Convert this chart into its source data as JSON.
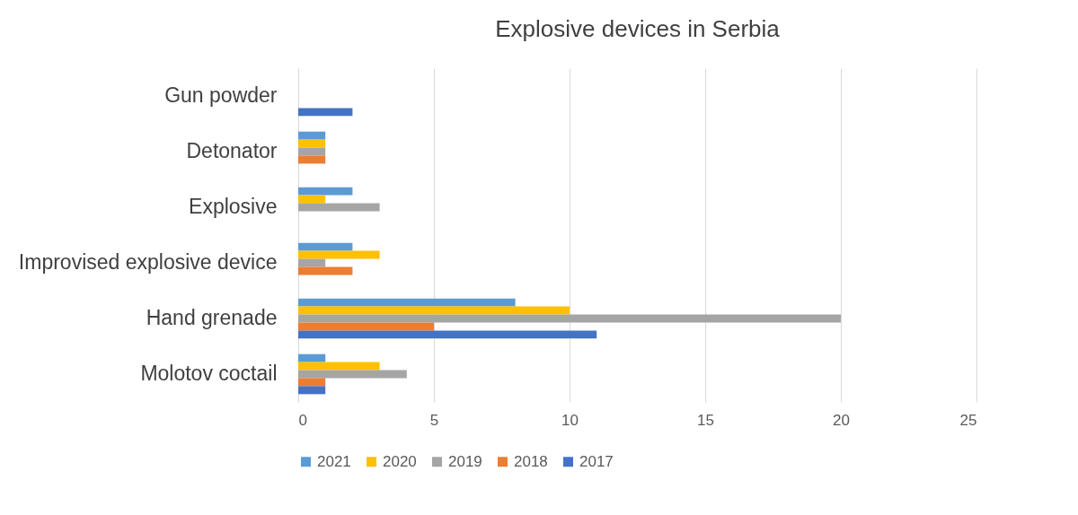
{
  "chart_data": {
    "type": "bar",
    "orientation": "horizontal",
    "title": "Explosive devices in Serbia",
    "categories": [
      "Gun powder",
      "Detonator",
      "Explosive",
      "Improvised explosive device",
      "Hand grenade",
      "Molotov coctail"
    ],
    "series": [
      {
        "name": "2021",
        "color": "#5b9bd5",
        "values": [
          null,
          1,
          2,
          2,
          8,
          1
        ]
      },
      {
        "name": "2020",
        "color": "#ffc000",
        "values": [
          null,
          1,
          1,
          3,
          10,
          3
        ]
      },
      {
        "name": "2019",
        "color": "#a5a5a5",
        "values": [
          null,
          1,
          3,
          1,
          20,
          4
        ]
      },
      {
        "name": "2018",
        "color": "#ed7d31",
        "values": [
          null,
          1,
          null,
          2,
          5,
          1
        ]
      },
      {
        "name": "2017",
        "color": "#4472c4",
        "values": [
          2,
          null,
          null,
          null,
          11,
          1
        ]
      }
    ],
    "xlim": [
      0,
      25
    ],
    "xticks": [
      0,
      5,
      10,
      15,
      20,
      25
    ],
    "grid": "x",
    "legend": "bottom"
  }
}
